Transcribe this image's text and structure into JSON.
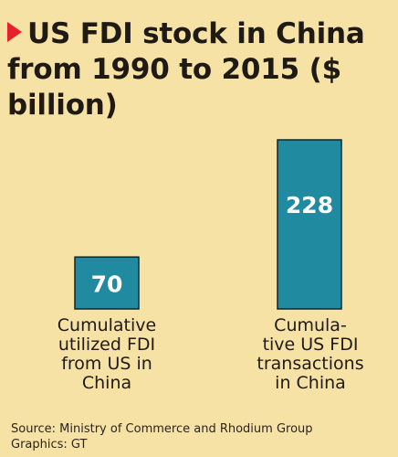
{
  "title": "US FDI stock in China from 1990 to 2015 ($ billion)",
  "colors": {
    "background": "#f7e2a6",
    "bar": "#1f8aa0",
    "bar_stroke": "#10262c",
    "title_marker": "#e8202a",
    "bar_value_text": "#ffffff"
  },
  "chart_data": {
    "type": "bar",
    "title": "US FDI stock in China from 1990 to 2015 ($ billion)",
    "categories": [
      "Cumulative\nutilized FDI\nfrom US in\nChina",
      "Cumula-\ntive US FDI\ntransactions\nin China"
    ],
    "values": [
      70,
      228
    ],
    "value_labels": [
      "70",
      "228"
    ],
    "xlabel": "",
    "ylabel": "",
    "ylim": [
      0,
      228
    ],
    "grid": false,
    "legend": "none"
  },
  "source": "Source: Ministry of Commerce and Rhodium Group",
  "credit": "Graphics: GT"
}
